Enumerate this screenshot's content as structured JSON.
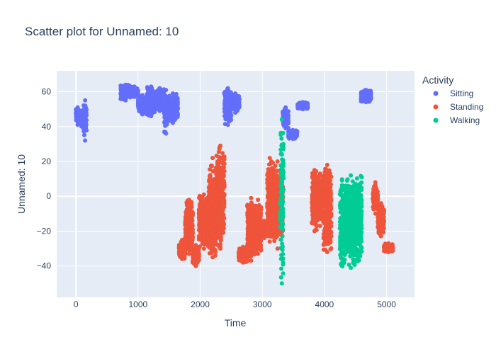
{
  "chart_data": {
    "type": "scatter",
    "title": "Scatter plot for Unnamed: 10",
    "xlabel": "Time",
    "ylabel": "Unnamed: 10",
    "xlim": [
      -310,
      5450
    ],
    "ylim": [
      -58,
      72
    ],
    "x_ticks": [
      0,
      1000,
      2000,
      3000,
      4000,
      5000
    ],
    "y_ticks": [
      -40,
      -20,
      0,
      20,
      40,
      60
    ],
    "grid": true,
    "legend": {
      "title": "Activity",
      "placement": "top-right"
    },
    "plot_background": "#e5ecf6",
    "series": [
      {
        "name": "Sitting",
        "color": "#636efa",
        "segments": [
          [
            0,
            55,
            41,
            51
          ],
          [
            55,
            125,
            40,
            49
          ],
          [
            125,
            170,
            32,
            55
          ],
          [
            720,
            880,
            55,
            64
          ],
          [
            880,
            1000,
            57,
            63
          ],
          [
            1000,
            1140,
            47,
            58
          ],
          [
            1140,
            1280,
            46,
            63
          ],
          [
            1280,
            1420,
            49,
            62
          ],
          [
            1420,
            1480,
            36,
            61
          ],
          [
            1480,
            1640,
            42,
            59
          ],
          [
            2390,
            2500,
            41,
            62
          ],
          [
            2500,
            2630,
            48,
            59
          ],
          [
            3330,
            3420,
            39,
            51
          ],
          [
            3420,
            3560,
            33,
            38
          ],
          [
            3570,
            3730,
            50,
            54
          ],
          [
            4590,
            4750,
            54,
            61
          ]
        ]
      },
      {
        "name": "Standing",
        "color": "#ef553b",
        "segments": [
          [
            1660,
            1760,
            -36,
            -25
          ],
          [
            1760,
            1880,
            -33,
            -2
          ],
          [
            1880,
            1980,
            -40,
            -28
          ],
          [
            1980,
            2140,
            -30,
            1
          ],
          [
            2140,
            2260,
            -35,
            22
          ],
          [
            2260,
            2390,
            -30,
            29
          ],
          [
            2620,
            2760,
            -38,
            -29
          ],
          [
            2760,
            2880,
            -37,
            -1
          ],
          [
            2880,
            2980,
            -33,
            -2
          ],
          [
            2980,
            3080,
            -24,
            -14
          ],
          [
            3080,
            3160,
            -26,
            22
          ],
          [
            3160,
            3330,
            -30,
            20
          ],
          [
            3800,
            3880,
            -20,
            15
          ],
          [
            3880,
            3980,
            -17,
            13
          ],
          [
            3980,
            4110,
            -32,
            18
          ],
          [
            4780,
            4860,
            -10,
            8
          ],
          [
            4860,
            4960,
            -23,
            -4
          ],
          [
            4960,
            5100,
            -32,
            -27
          ]
        ]
      },
      {
        "name": "Walking",
        "color": "#00cc96",
        "segments": [
          [
            3290,
            3340,
            -50,
            44
          ],
          [
            4250,
            4600,
            -41,
            12
          ]
        ]
      }
    ]
  }
}
